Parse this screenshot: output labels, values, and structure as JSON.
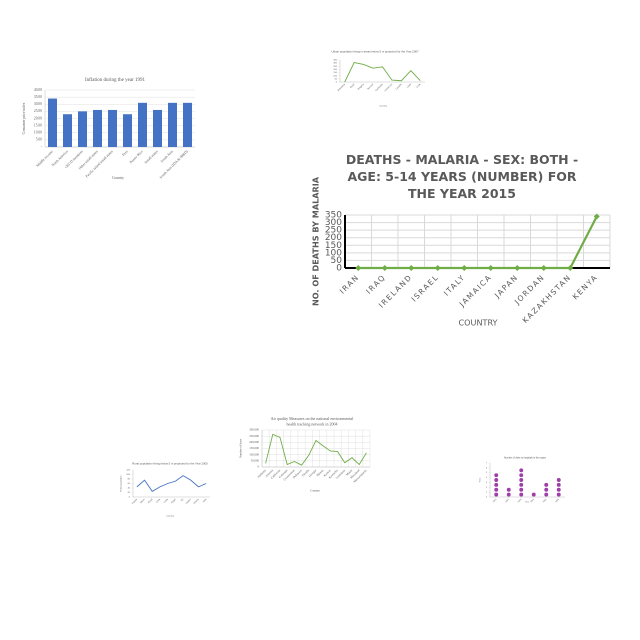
{
  "chart_data": [
    {
      "type": "bar",
      "title": "Inflation during the year 1991",
      "x_label": "Country",
      "y_label": "Consumer price index",
      "categories": [
        "Middle income",
        "North America",
        "OECD members",
        "Other small states",
        "Pacific island small states",
        "Peru",
        "Puerto Rico",
        "Small states",
        "South Asia",
        "South Asia (IDA & IBRD)"
      ],
      "values": [
        34,
        23,
        25,
        26,
        26,
        23,
        31,
        26,
        31,
        31
      ],
      "color": "#4472c4",
      "ylim": [
        0,
        40
      ],
      "yticks": [
        {
          "value": 0,
          "label": "-"
        },
        {
          "value": 5,
          "label": "5.00"
        },
        {
          "value": 10,
          "label": "10.00"
        },
        {
          "value": 15,
          "label": "15.00"
        },
        {
          "value": 20,
          "label": "20.00"
        },
        {
          "value": 25,
          "label": "25.00"
        },
        {
          "value": 30,
          "label": "30.00"
        },
        {
          "value": 35,
          "label": "35.00"
        },
        {
          "value": 40,
          "label": "40.00"
        }
      ],
      "grid": true
    },
    {
      "type": "line",
      "title": "Urban population living in areas below 5 m projected for the Year 2007",
      "x_label": "Country",
      "categories": [
        "Botswana",
        "Brazil",
        "Bulgaria",
        "Burundi",
        "Cambodia",
        "Cameroon",
        "Canada",
        "Chad",
        "Chile"
      ],
      "values": [
        0,
        310,
        280,
        220,
        240,
        30,
        20,
        180,
        20
      ],
      "color": "#70ad47",
      "ylim": [
        0,
        350
      ],
      "yticks": [
        0,
        50,
        100,
        150,
        200,
        250,
        300,
        350
      ],
      "grid": false
    },
    {
      "type": "line",
      "title": "DEATHS - MALARIA - SEX: BOTH - AGE: 5-14 YEARS (NUMBER) FOR THE YEAR 2015",
      "x_label": "COUNTRY",
      "y_label": "NO. OF DEATHS BY MALARIA",
      "categories": [
        "IRAN",
        "IRAQ",
        "IRELAND",
        "ISRAEL",
        "ITALY",
        "JAMAICA",
        "JAPAN",
        "JORDAN",
        "KAZAKHSTAN",
        "KENYA"
      ],
      "values": [
        0,
        0,
        0,
        0,
        0,
        0,
        0,
        0,
        0,
        340
      ],
      "color": "#70ad47",
      "markers": true,
      "ylim": [
        0,
        350
      ],
      "yticks": [
        0,
        50,
        100,
        150,
        200,
        250,
        300,
        350
      ],
      "grid": true
    },
    {
      "type": "line",
      "title": "Air quality Measures on the national environmental health tracking network in 2004",
      "x_label": "Country",
      "y_label": "Number of days",
      "categories": [
        "Alabama",
        "Arizona",
        "California",
        "Colorado",
        "Connecticut",
        "Delaware",
        "Florida",
        "Georgia",
        "Illinois",
        "Kansas",
        "Kentucky",
        "Louisiana",
        "Maine",
        "Maryland",
        "Massachusetts"
      ],
      "values": [
        30000,
        265000,
        240000,
        20000,
        45000,
        15000,
        95000,
        215000,
        170000,
        130000,
        125000,
        35000,
        75000,
        20000,
        115000
      ],
      "color": "#70ad47",
      "ylim": [
        0,
        300000
      ],
      "yticks": [
        0,
        {
          "value": 50000,
          "label": "50,000"
        },
        {
          "value": 100000,
          "label": "100,000"
        },
        {
          "value": 150000,
          "label": "150,000"
        },
        {
          "value": 200000,
          "label": "200,000"
        },
        {
          "value": 250000,
          "label": "250,000"
        },
        {
          "value": 300000,
          "label": "300,000"
        }
      ],
      "grid": true
    },
    {
      "type": "line",
      "title": "Rural population living below 5 m projected for the Year 2000",
      "x_label": "Country",
      "y_label": "Rural population",
      "categories": [
        "Angola",
        "Benin",
        "Brazil",
        "Chile",
        "Cuba",
        "Egypt",
        "Fiji",
        "Gabon",
        "Ghana",
        "Haiti"
      ],
      "values": [
        45,
        75,
        25,
        45,
        60,
        70,
        95,
        75,
        45,
        60
      ],
      "color": "#4472c4",
      "ylim": [
        0,
        120
      ],
      "yticks": [
        0,
        20,
        40,
        60,
        80,
        100,
        120
      ],
      "grid": false
    },
    {
      "type": "dot",
      "title": "Number of visits to hospitals in the region",
      "x_label": "Year",
      "y_label": "Visits",
      "categories": [
        "2001",
        "2002",
        "2003",
        "2004",
        "2005",
        "2006"
      ],
      "values": [
        5,
        2,
        6,
        1,
        3,
        4
      ],
      "color": "#9e3fa8",
      "ylim": [
        0,
        7
      ],
      "yticks": [
        0,
        1,
        2,
        3,
        4,
        5,
        6,
        7
      ],
      "grid": false
    }
  ]
}
